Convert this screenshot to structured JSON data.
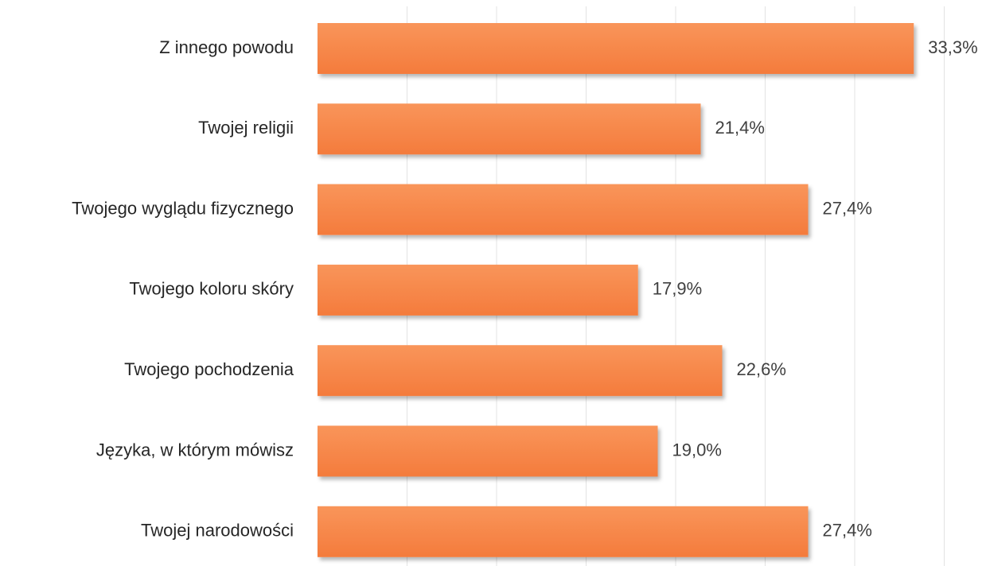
{
  "chart_data": {
    "type": "bar",
    "orientation": "horizontal",
    "categories": [
      "Z innego powodu",
      "Twojej religii",
      "Twojego wyglądu fizycznego",
      "Twojego koloru skóry",
      "Twojego pochodzenia",
      "Języka, w którym mówisz",
      "Twojej narodowości"
    ],
    "values": [
      33.3,
      21.4,
      27.4,
      17.9,
      22.6,
      19.0,
      27.4
    ],
    "value_labels": [
      "33,3%",
      "21,4%",
      "27,4%",
      "17,9%",
      "22,6%",
      "19,0%",
      "27,4%"
    ],
    "xlim": [
      0,
      35
    ],
    "grid": true,
    "legend": "none",
    "colors": {
      "bar": "#f47b3c",
      "bar_light": "#f9955a",
      "gridline": "#e3e3e3"
    }
  }
}
